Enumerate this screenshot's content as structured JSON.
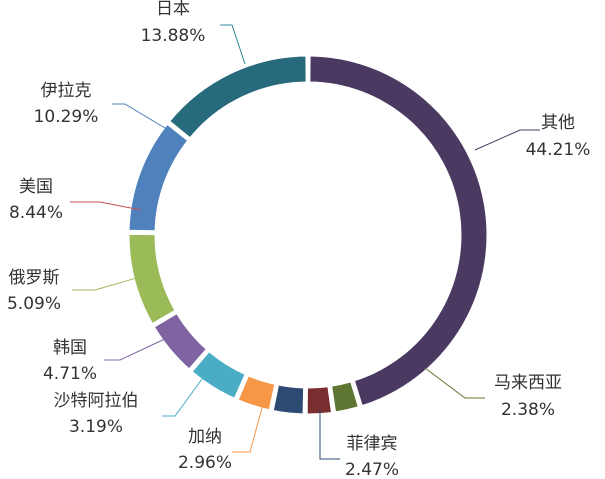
{
  "chart_data": {
    "type": "pie",
    "title": "",
    "legend": "none",
    "slices": [
      {
        "label": "其他",
        "value": 44.21,
        "value_label": "44.21%",
        "color": "#4a3a62"
      },
      {
        "label": "马来西亚",
        "value": 2.38,
        "value_label": "2.38%",
        "color": "#5f7532"
      },
      {
        "label": "菲律宾",
        "value": 2.47,
        "value_label": "2.47%",
        "color": "#7a2d2f"
      },
      {
        "label": "加纳",
        "value": 2.96,
        "value_label": "2.96%",
        "color": "#2d4a73"
      },
      {
        "label": "沙特阿拉伯",
        "value": 3.19,
        "value_label": "3.19%",
        "color": "#f79646"
      },
      {
        "label": "韩国",
        "value": 4.71,
        "value_label": "4.71%",
        "color": "#4bacc6"
      },
      {
        "label": "俄罗斯",
        "value": 5.09,
        "value_label": "5.09%",
        "color": "#8064a2"
      },
      {
        "label": "美国",
        "value": 8.44,
        "value_label": "8.44%",
        "color": "#9bbb59"
      },
      {
        "label": "伊拉克",
        "value": 10.29,
        "value_label": "10.29%",
        "color": "#c0504d"
      },
      {
        "label": "日本",
        "value": 13.88,
        "value_label": "13.88%",
        "color": "#4f81bd"
      }
    ]
  }
}
